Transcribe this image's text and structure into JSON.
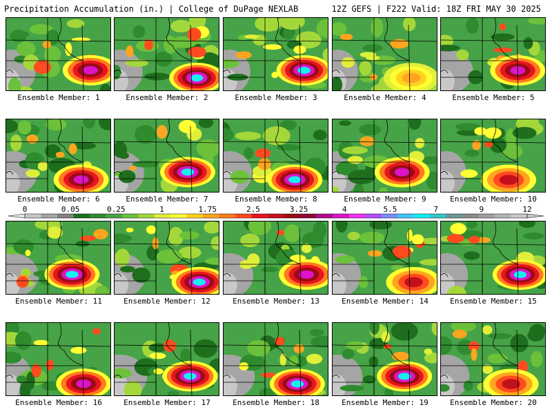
{
  "header": {
    "title": "Precipitation Accumulation (in.) | College of DuPage NEXLAB",
    "run_info": "12Z GEFS | F222 Valid: 18Z FRI MAY 30 2025"
  },
  "panel_label_prefix": "Ensemble Member: ",
  "members": [
    {
      "id": "1",
      "peak": "magenta"
    },
    {
      "id": "2",
      "peak": "cyan"
    },
    {
      "id": "3",
      "peak": "cyan"
    },
    {
      "id": "4",
      "peak": "yellow"
    },
    {
      "id": "5",
      "peak": "magenta"
    },
    {
      "id": "6",
      "peak": "magenta"
    },
    {
      "id": "7",
      "peak": "cyan"
    },
    {
      "id": "8",
      "peak": "cyan"
    },
    {
      "id": "9",
      "peak": "magenta"
    },
    {
      "id": "10",
      "peak": "red"
    },
    {
      "id": "11",
      "peak": "cyan"
    },
    {
      "id": "12",
      "peak": "cyan"
    },
    {
      "id": "13",
      "peak": "magenta"
    },
    {
      "id": "14",
      "peak": "red"
    },
    {
      "id": "15",
      "peak": "cyan"
    },
    {
      "id": "16",
      "peak": "magenta"
    },
    {
      "id": "17",
      "peak": "cyan"
    },
    {
      "id": "18",
      "peak": "cyan"
    },
    {
      "id": "19",
      "peak": "cyan"
    },
    {
      "id": "20",
      "peak": "red"
    }
  ],
  "colorbar": {
    "tick_labels": [
      "0",
      "0.05",
      "0.25",
      "1",
      "1.75",
      "2.5",
      "3.25",
      "4",
      "5.5",
      "7",
      "9",
      "12"
    ],
    "colors": [
      "#c8c8c8",
      "#a5a5a5",
      "#828282",
      "#1e6e1e",
      "#2e8b2e",
      "#47a347",
      "#6cc13a",
      "#a4d83a",
      "#e0ef3a",
      "#ffff33",
      "#ffd21f",
      "#ffa51f",
      "#ff7b1f",
      "#ff4b1f",
      "#e8141e",
      "#c4101c",
      "#9a0b16",
      "#8a0a3a",
      "#b40a8c",
      "#dc14c8",
      "#f032f0",
      "#b44bff",
      "#7b8cff",
      "#3cc8ff",
      "#14f0f0",
      "#32c8c8",
      "#6e9696",
      "#8c8c8c",
      "#a0a0a0",
      "#b4b4b4",
      "#c8c8c8"
    ]
  }
}
